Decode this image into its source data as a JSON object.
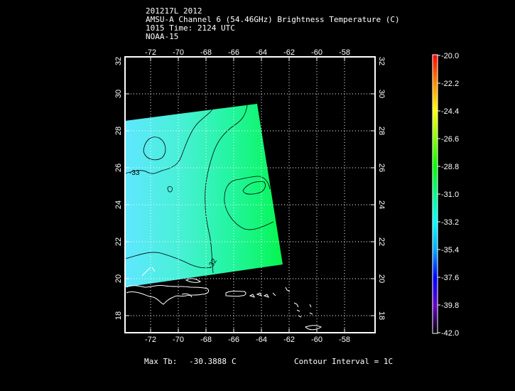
{
  "header": {
    "line1": "201217L 2012",
    "line2": "AMSU-A Channel 6 (54.46GHz) Brightness Temperature (C)",
    "line3": "1015 Time: 2124 UTC",
    "line4": "NOAA-15"
  },
  "map": {
    "lon_ticks": [
      "-72",
      "-70",
      "-68",
      "-66",
      "-64",
      "-62",
      "-60",
      "-58"
    ],
    "lat_ticks": [
      "18",
      "20",
      "22",
      "24",
      "26",
      "28",
      "30",
      "32"
    ],
    "contour_labels": [
      "-33",
      "-32"
    ],
    "coastline_color": "#ffffff",
    "gridline_color": "#ffffff"
  },
  "colorbar": {
    "labels": [
      "-20.0",
      "-22.2",
      "-24.4",
      "-26.6",
      "-28.8",
      "-31.0",
      "-33.2",
      "-35.4",
      "-37.6",
      "-39.8",
      "-42.0"
    ],
    "colors_top_to_bottom": [
      "#ff0000",
      "#ff8800",
      "#ffff00",
      "#88ff00",
      "#00ff00",
      "#00ff88",
      "#00ffff",
      "#00aaff",
      "#0000ff",
      "#6600cc",
      "#000000"
    ]
  },
  "footer": {
    "max_tb_label": "Max Tb:",
    "max_tb_value": "-30.3888",
    "max_tb_unit": "C",
    "contour_interval": "Contour Interval = 1C"
  }
}
